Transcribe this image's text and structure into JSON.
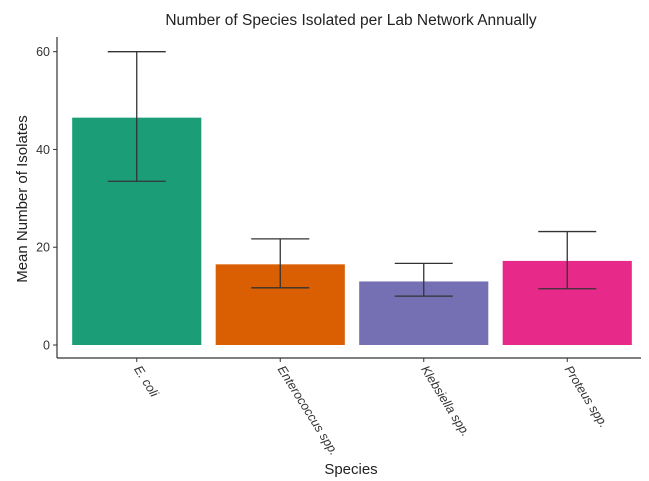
{
  "chart_data": {
    "type": "bar",
    "title": "Number of Species Isolated per Lab Network Annually",
    "xlabel": "Species",
    "ylabel": "Mean Number of Isolates",
    "ylim": [
      0,
      63
    ],
    "yticks": [
      0,
      20,
      40,
      60
    ],
    "grid": false,
    "categories": [
      "E. coli",
      "Enterococcus spp.",
      "Klebsiella spp.",
      "Proteus spp."
    ],
    "values": [
      46.5,
      16.5,
      13.0,
      17.2
    ],
    "error_low": [
      33.5,
      11.7,
      10.0,
      11.5
    ],
    "error_high": [
      60.0,
      21.7,
      16.7,
      23.2
    ],
    "colors": [
      "#1b9e77",
      "#d95f02",
      "#7570b3",
      "#e7298a"
    ]
  }
}
